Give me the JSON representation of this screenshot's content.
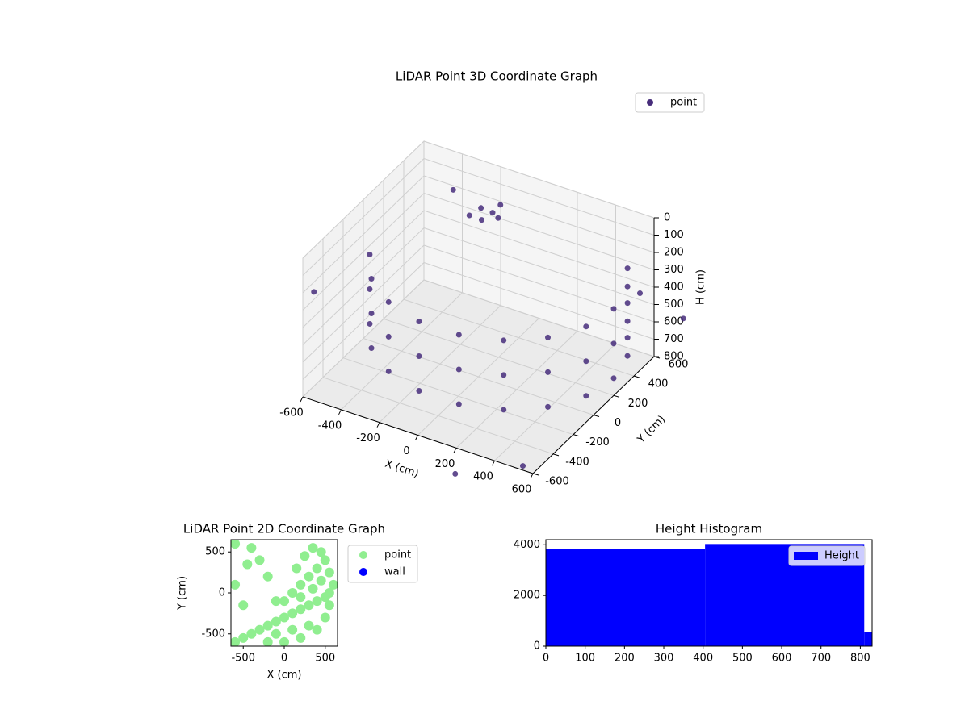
{
  "chart_data": [
    {
      "type": "scatter3d",
      "title": "LiDAR Point 3D Coordinate Graph",
      "xlabel": "X (cm)",
      "ylabel": "Y (cm)",
      "zlabel": "H (cm)",
      "xlim": [
        -600,
        600
      ],
      "ylim": [
        -600,
        600
      ],
      "zlim": [
        0,
        800
      ],
      "z_inverted": true,
      "xticks": [
        -600,
        -400,
        -200,
        0,
        200,
        400,
        600
      ],
      "yticks": [
        -600,
        -400,
        -200,
        0,
        200,
        400,
        600
      ],
      "zticks": [
        0,
        100,
        200,
        300,
        400,
        500,
        600,
        700,
        800
      ],
      "grid": true,
      "legend": "upper right",
      "series": [
        {
          "name": "point",
          "color": "#472d7b",
          "x": [
            -250,
            -200,
            -150,
            -220,
            -180,
            -300,
            -564,
            -460,
            -300,
            -104,
            104,
            300,
            460,
            564,
            600,
            564,
            491,
            -564,
            -460,
            -300,
            -104,
            104,
            300,
            460,
            564,
            600,
            564,
            491,
            -564,
            -460,
            -300,
            -104,
            104,
            300,
            460,
            564,
            600,
            564,
            491,
            -700,
            500,
            700,
            300,
            -500,
            600
          ],
          "y": [
            500,
            520,
            480,
            450,
            560,
            480,
            -5,
            -186,
            -320,
            -391,
            -391,
            -320,
            -186,
            -5,
            200,
            405,
            544,
            -5,
            -186,
            -320,
            -391,
            -391,
            -320,
            -186,
            -5,
            200,
            405,
            544,
            -5,
            -186,
            -320,
            -391,
            -391,
            -320,
            -186,
            -5,
            200,
            405,
            544,
            -300,
            650,
            700,
            -800,
            700,
            -700
          ],
          "z": [
            200,
            220,
            210,
            230,
            190,
            250,
            300,
            300,
            300,
            300,
            300,
            300,
            300,
            300,
            300,
            300,
            300,
            500,
            500,
            500,
            500,
            500,
            500,
            500,
            500,
            500,
            500,
            500,
            700,
            700,
            700,
            700,
            700,
            700,
            700,
            700,
            700,
            700,
            700,
            400,
            500,
            600,
            800,
            300,
            700
          ]
        }
      ]
    },
    {
      "type": "scatter",
      "title": "LiDAR Point 2D Coordinate Graph",
      "xlabel": "X (cm)",
      "ylabel": "Y (cm)",
      "xlim": [
        -650,
        650
      ],
      "ylim": [
        -650,
        650
      ],
      "xticks": [
        -500,
        0,
        500
      ],
      "yticks": [
        -500,
        0,
        500
      ],
      "legend": "outside right",
      "series": [
        {
          "name": "point",
          "color": "#90ee90",
          "x": [
            -600,
            -500,
            -400,
            -300,
            -200,
            -100,
            0,
            100,
            200,
            300,
            400,
            500,
            550,
            -200,
            0,
            200,
            400,
            500,
            300,
            100,
            -100,
            0,
            100,
            200,
            300,
            400,
            500,
            200,
            350,
            450,
            550,
            150,
            250,
            350,
            450,
            550,
            600,
            -600,
            -500,
            -450,
            -300,
            -600,
            -400,
            -200,
            -100
          ],
          "y": [
            -600,
            -550,
            -500,
            -450,
            -400,
            -350,
            -300,
            -250,
            -200,
            -150,
            -100,
            -50,
            0,
            -600,
            -600,
            -550,
            -450,
            -300,
            -400,
            -450,
            -500,
            -100,
            0,
            100,
            200,
            300,
            400,
            -50,
            50,
            150,
            250,
            300,
            450,
            550,
            500,
            -150,
            100,
            100,
            -150,
            350,
            400,
            600,
            550,
            200,
            -100
          ]
        },
        {
          "name": "wall",
          "color": "#0000ff",
          "x": [],
          "y": []
        }
      ]
    },
    {
      "type": "histogram",
      "title": "Height Histogram",
      "bins": [
        0,
        405,
        810,
        830
      ],
      "counts": [
        3850,
        4030,
        550
      ],
      "series_name": "Height",
      "color": "#0000ff",
      "xlim": [
        0,
        830
      ],
      "ylim": [
        0,
        4200
      ],
      "xticks": [
        0,
        100,
        200,
        300,
        400,
        500,
        600,
        700,
        800
      ],
      "yticks": [
        0,
        2000,
        4000
      ],
      "legend": "upper right"
    }
  ]
}
